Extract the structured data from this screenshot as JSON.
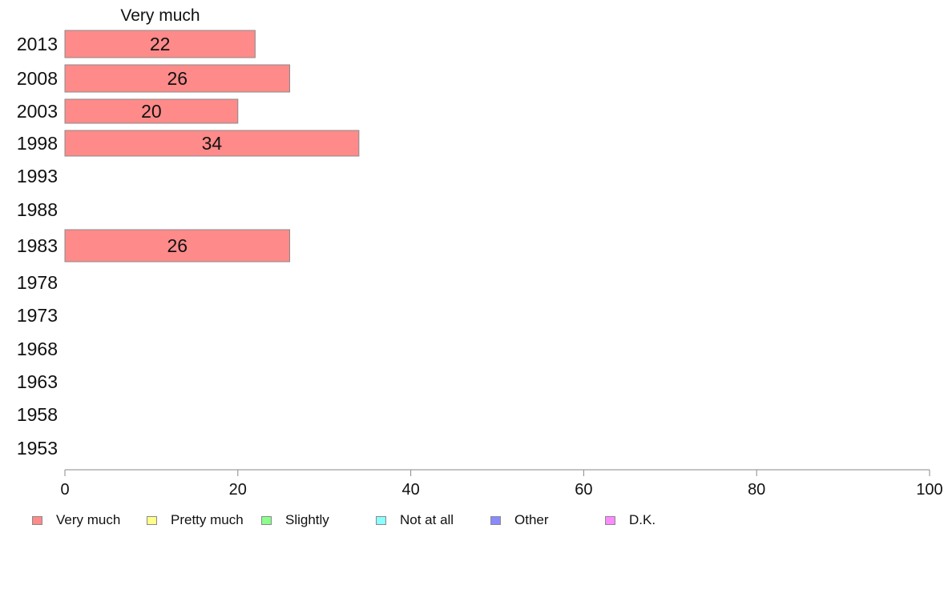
{
  "chart_data": {
    "type": "bar",
    "orientation": "horizontal",
    "title": "Very much",
    "categories": [
      "2013",
      "2008",
      "2003",
      "1998",
      "1993",
      "1988",
      "1983",
      "1978",
      "1973",
      "1968",
      "1963",
      "1958",
      "1953"
    ],
    "series": [
      {
        "name": "Very much",
        "values": [
          22,
          26,
          20,
          34,
          null,
          null,
          26,
          null,
          null,
          null,
          null,
          null,
          null
        ],
        "color": "#ff8a8a"
      }
    ],
    "data_labels": [
      "22",
      "26",
      "20",
      "34",
      "",
      "",
      "26",
      "",
      "",
      "",
      "",
      "",
      ""
    ],
    "xlim": [
      0,
      100
    ],
    "xticks": [
      0,
      20,
      40,
      60,
      80,
      100
    ],
    "grid": false,
    "legend_position": "bottom",
    "legend": [
      {
        "label": "Very much",
        "color": "#ff8a8a"
      },
      {
        "label": "Pretty much",
        "color": "#ffff8a"
      },
      {
        "label": "Slightly",
        "color": "#8aff8a"
      },
      {
        "label": "Not at all",
        "color": "#8affff"
      },
      {
        "label": "Other",
        "color": "#8a8aff"
      },
      {
        "label": "D.K.",
        "color": "#ff8aff"
      }
    ]
  }
}
